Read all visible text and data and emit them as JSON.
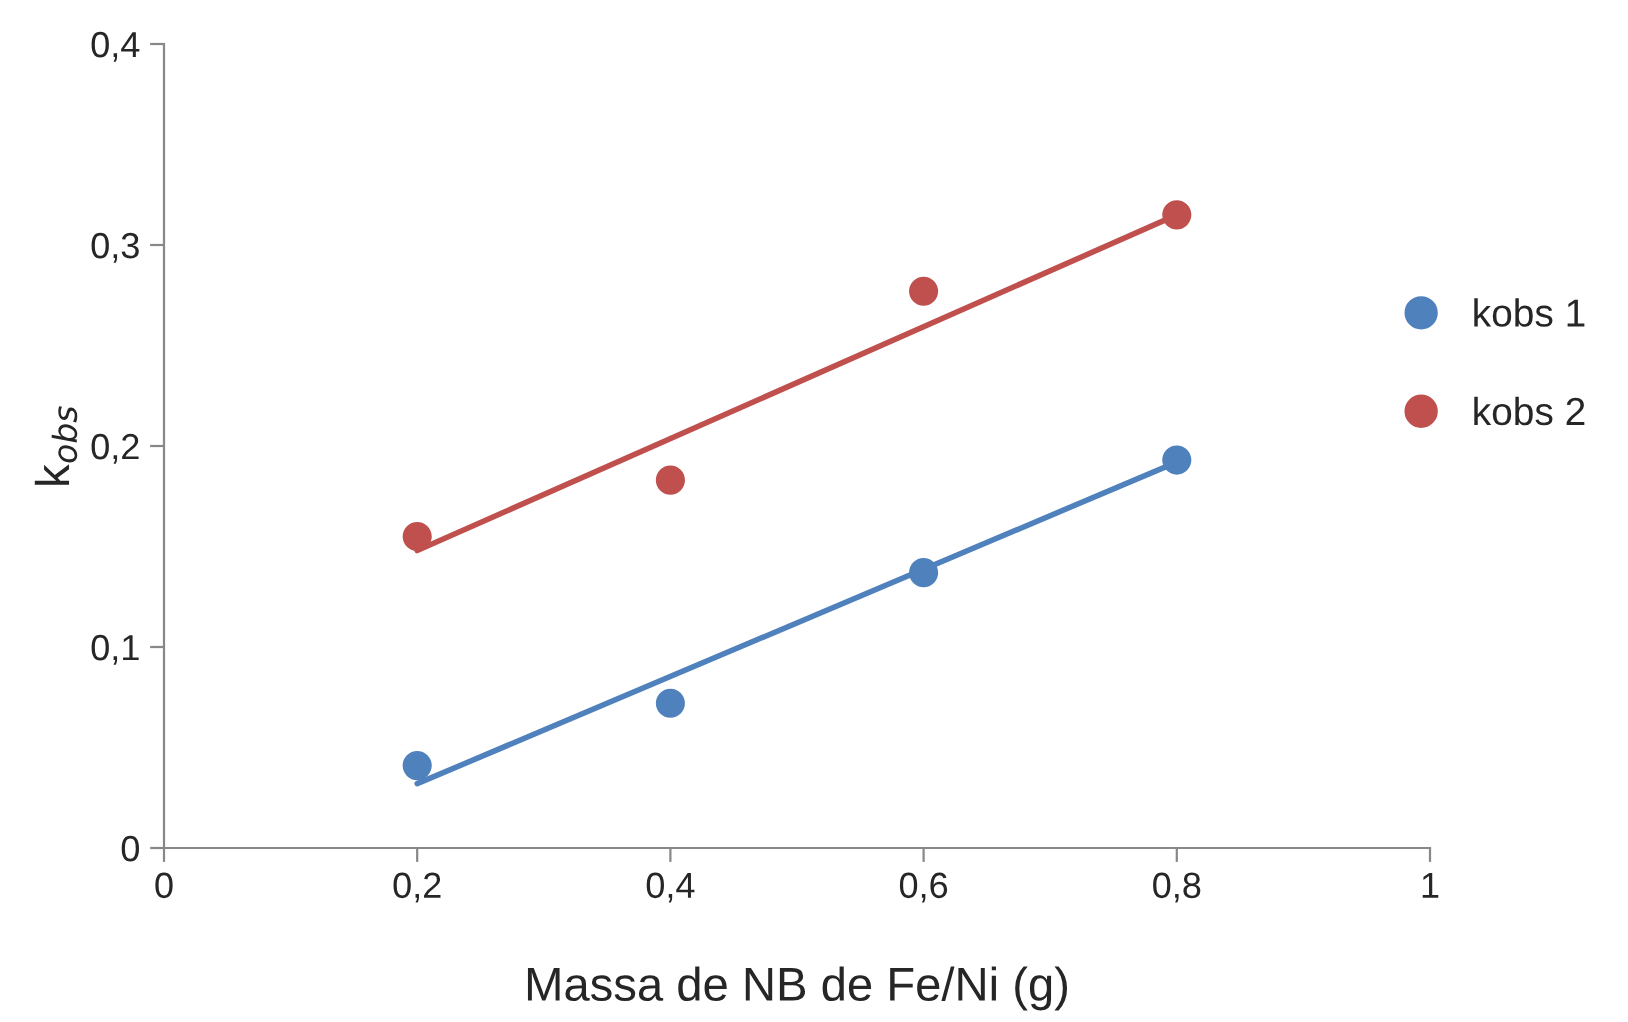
{
  "chart_data": {
    "type": "scatter",
    "xlabel": "Massa de NB de Fe/Ni (g)",
    "ylabel": "k$_{obs}$",
    "xlim": [
      0,
      1
    ],
    "xticks": [
      0,
      {
        "value": 0.2,
        "label": "0,2"
      },
      {
        "value": 0.4,
        "label": "0,4"
      },
      {
        "value": 0.6,
        "label": "0,6"
      },
      {
        "value": 0.8,
        "label": "0,8"
      },
      1
    ],
    "ylim": [
      0,
      0.4
    ],
    "yticks": [
      0,
      {
        "value": 0.1,
        "label": "0,1"
      },
      {
        "value": 0.2,
        "label": "0,2"
      },
      {
        "value": 0.3,
        "label": "0,3"
      },
      {
        "value": 0.4,
        "label": "0,4"
      }
    ],
    "grid": false,
    "legend": "right",
    "marker": "circle",
    "series": [
      {
        "name": "kobs 1",
        "color": "#4f81bd",
        "x": [
          0.2,
          0.4,
          0.6,
          0.8
        ],
        "values": [
          0.041,
          0.072,
          0.137,
          0.193
        ]
      },
      {
        "name": "kobs 2",
        "color": "#c0504d",
        "x": [
          0.2,
          0.4,
          0.6,
          0.8
        ],
        "values": [
          0.155,
          0.183,
          0.277,
          0.315
        ]
      },
      {
        "type": "line",
        "marker": "none",
        "color": "#4f81bd",
        "x": [
          0.2,
          0.8
        ],
        "values": [
          0.032,
          0.192
        ]
      },
      {
        "type": "line",
        "marker": "none",
        "color": "#c0504d",
        "x": [
          0.2,
          0.8
        ],
        "values": [
          0.148,
          0.315
        ]
      }
    ]
  }
}
